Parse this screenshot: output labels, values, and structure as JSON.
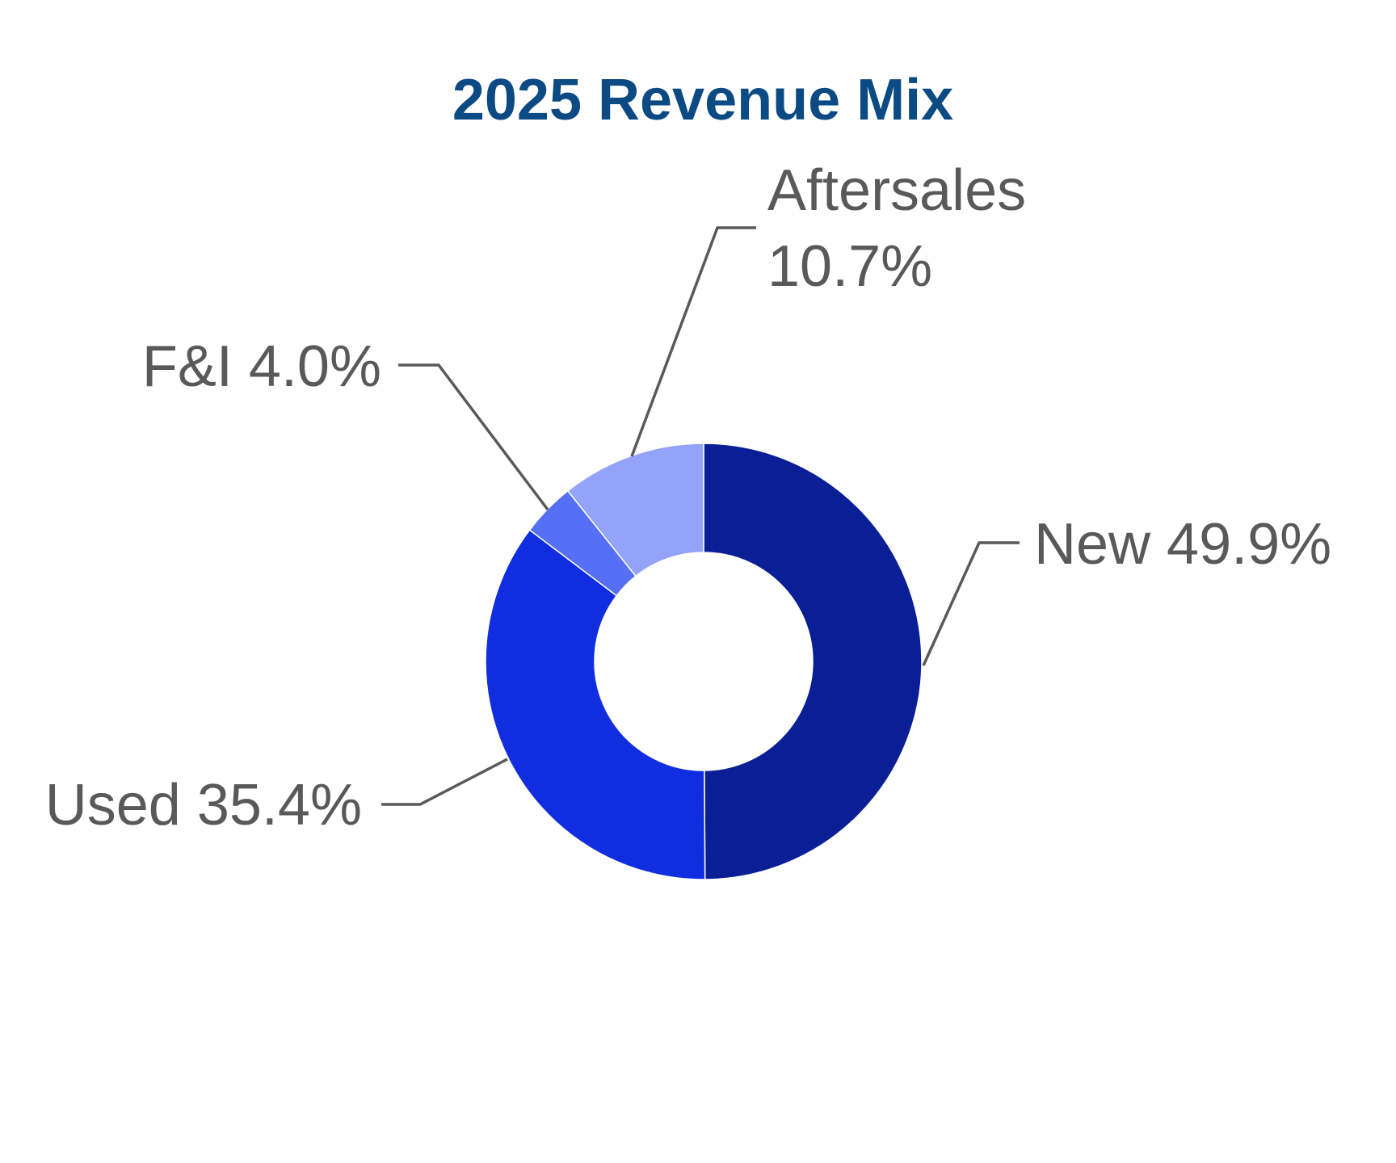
{
  "chart_data": {
    "type": "pie",
    "subtype": "donut",
    "title": "2025 Revenue Mix",
    "unit": "%",
    "start_angle": "12 o'clock",
    "direction": "clockwise",
    "legend": "none",
    "slices": [
      {
        "name": "New",
        "value": 49.9,
        "label_lines": [
          "New 49.9%"
        ],
        "color": "#0a1f96"
      },
      {
        "name": "Used",
        "value": 35.4,
        "label_lines": [
          "Used 35.4%"
        ],
        "color": "#102ee0"
      },
      {
        "name": "F&I",
        "value": 4.0,
        "label_lines": [
          "F&I 4.0%"
        ],
        "color": "#5570f5"
      },
      {
        "name": "Aftersales",
        "value": 10.7,
        "label_lines": [
          "Aftersales",
          "10.7%"
        ],
        "color": "#93a3f8"
      }
    ]
  },
  "colors": {
    "title": "#0c4a83",
    "label_text": "#595959",
    "leader_line": "#595959",
    "background": "#ffffff"
  }
}
